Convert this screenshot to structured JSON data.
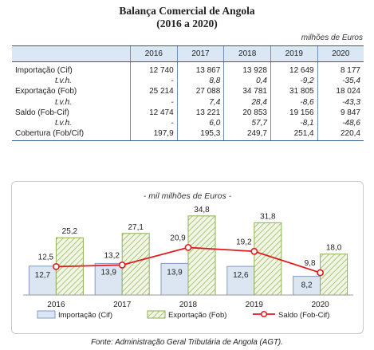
{
  "title_line1": "Balança Comercial de Angola",
  "title_line2": "(2016 a 2020)",
  "table_unit": "milhões de Euros",
  "table": {
    "headers": [
      "",
      "2016",
      "2017",
      "2018",
      "2019",
      "2020"
    ],
    "rows": [
      {
        "label": "Importação (Cif)",
        "values": [
          "12 740",
          "13 867",
          "13 928",
          "12 649",
          "8 177"
        ],
        "italic": false
      },
      {
        "label": "t.v.h.",
        "values": [
          "-",
          "8,8",
          "0,4",
          "-9,2",
          "-35,4"
        ],
        "italic": true
      },
      {
        "label": "Exportação (Fob)",
        "values": [
          "25 214",
          "27 088",
          "34 781",
          "31 805",
          "18 024"
        ],
        "italic": false
      },
      {
        "label": "t.v.h.",
        "values": [
          "-",
          "7,4",
          "28,4",
          "-8,6",
          "-43,3"
        ],
        "italic": true
      },
      {
        "label": "Saldo (Fob-Cif)",
        "values": [
          "12 474",
          "13 221",
          "20 853",
          "19 156",
          "9 847"
        ],
        "italic": false
      },
      {
        "label": "t.v.h.",
        "values": [
          "-",
          "6,0",
          "57,7",
          "-8,1",
          "-48,6"
        ],
        "italic": true
      },
      {
        "label": "Cobertura (Fob/Cif)",
        "values": [
          "197,9",
          "195,3",
          "249,7",
          "251,4",
          "220,4"
        ],
        "italic": false
      }
    ]
  },
  "chart_data": {
    "type": "bar",
    "title": "- mil milhões de Euros -",
    "categories": [
      "2016",
      "2017",
      "2018",
      "2019",
      "2020"
    ],
    "series": [
      {
        "name": "Importação (Cif)",
        "type": "bar",
        "values": [
          12.7,
          13.9,
          13.9,
          12.6,
          8.2
        ],
        "labels": [
          "12,7",
          "13,9",
          "13,9",
          "12,6",
          "8,2"
        ],
        "color": "#dce6f2",
        "border": "#7f9cc0"
      },
      {
        "name": "Exportação (Fob)",
        "type": "bar",
        "values": [
          25.2,
          27.1,
          34.8,
          31.8,
          18.0
        ],
        "labels": [
          "25,2",
          "27,1",
          "34,8",
          "31,8",
          "18,0"
        ],
        "color": "#ebf1de",
        "border": "#8db255",
        "pattern": "diagonal-hatch"
      },
      {
        "name": "Saldo (Fob-Cif)",
        "type": "line",
        "values": [
          12.5,
          13.2,
          20.9,
          19.2,
          9.8
        ],
        "labels": [
          "12,5",
          "13,2",
          "20,9",
          "19,2",
          "9,8"
        ],
        "color": "#e31a1c"
      }
    ],
    "ylim": [
      0,
      40
    ],
    "grid": false,
    "legend": "bottom"
  },
  "source": "Fonte: Administração Geral Tributária de Angola (AGT)."
}
